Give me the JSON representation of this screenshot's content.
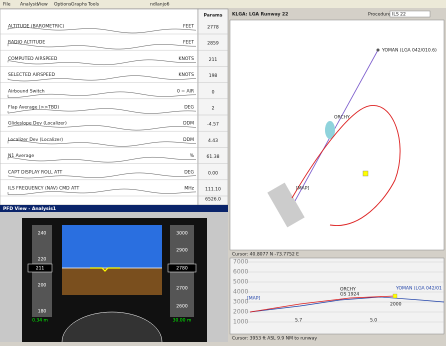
{
  "menu": [
    "File",
    "Analysis",
    "View",
    "Options",
    "Graphs",
    "Tools"
  ],
  "window_title": "ndlanjo6",
  "params": {
    "header": "Params",
    "rows": [
      {
        "label": "ALTITUDE (BAROMETRIC)",
        "unit": "FEET",
        "value": "2778"
      },
      {
        "label": "RADIO ALTITUDE",
        "unit": "FEET",
        "value": "2859"
      },
      {
        "label": "COMPUTED AIRSPEED",
        "unit": "KNOTS",
        "value": "211"
      },
      {
        "label": "SELECTED AIRSPEED",
        "unit": "KNOTS",
        "value": "198"
      },
      {
        "label": "Airbound Switch",
        "unit": "0 = AIR",
        "value": "0"
      },
      {
        "label": "Flap Average (>>TBD)",
        "unit": "DEG",
        "value": "2"
      },
      {
        "label": "Glideslope Dev (Localizer)",
        "unit": "DDM",
        "value": "-4.57"
      },
      {
        "label": "Localizer Dev (Localizer)",
        "unit": "DDM",
        "value": "4.43"
      },
      {
        "label": "N1 Average",
        "unit": "%",
        "value": "61.38"
      },
      {
        "label": "CAPT DISPLAY ROLL ATT",
        "unit": "DEG",
        "value": "0.00"
      },
      {
        "label": "ILS FREQUENCY (NAV) CMD ATT",
        "unit": "MHz",
        "value": "111.10"
      }
    ],
    "footer_value": "6526.0"
  },
  "pfd": {
    "title": "PFD View - Analysis1",
    "speed": "211",
    "altitude": "2780",
    "speed_ticks": [
      "240",
      "220",
      "200",
      "180"
    ],
    "alt_ticks": [
      "3000",
      "2900",
      "2700",
      "2600"
    ],
    "speed_box": "0.34 m",
    "alt_box": "30.00 m"
  },
  "map": {
    "title": "KLGA: LGA Runway 22",
    "procedure_label": "Procedure",
    "procedure": "ILS 22",
    "waypoints": [
      "YOMAN (LGA 042/010.6)",
      "ORCHY",
      "[MAP]"
    ],
    "cursor": "Cursor: 40.8077 N -73.7752 E"
  },
  "profile": {
    "y_labels": [
      "7000",
      "6000",
      "5000",
      "4000",
      "3000",
      "2000",
      "1000"
    ],
    "labels": [
      "ORCHY",
      "GS 1924",
      "YOMAN (LGA 042/01",
      "2000",
      "5.7",
      "5.0",
      "[MAP]"
    ],
    "cursor": "Cursor: 3953 ft ASL  9.9 NM to runway"
  }
}
